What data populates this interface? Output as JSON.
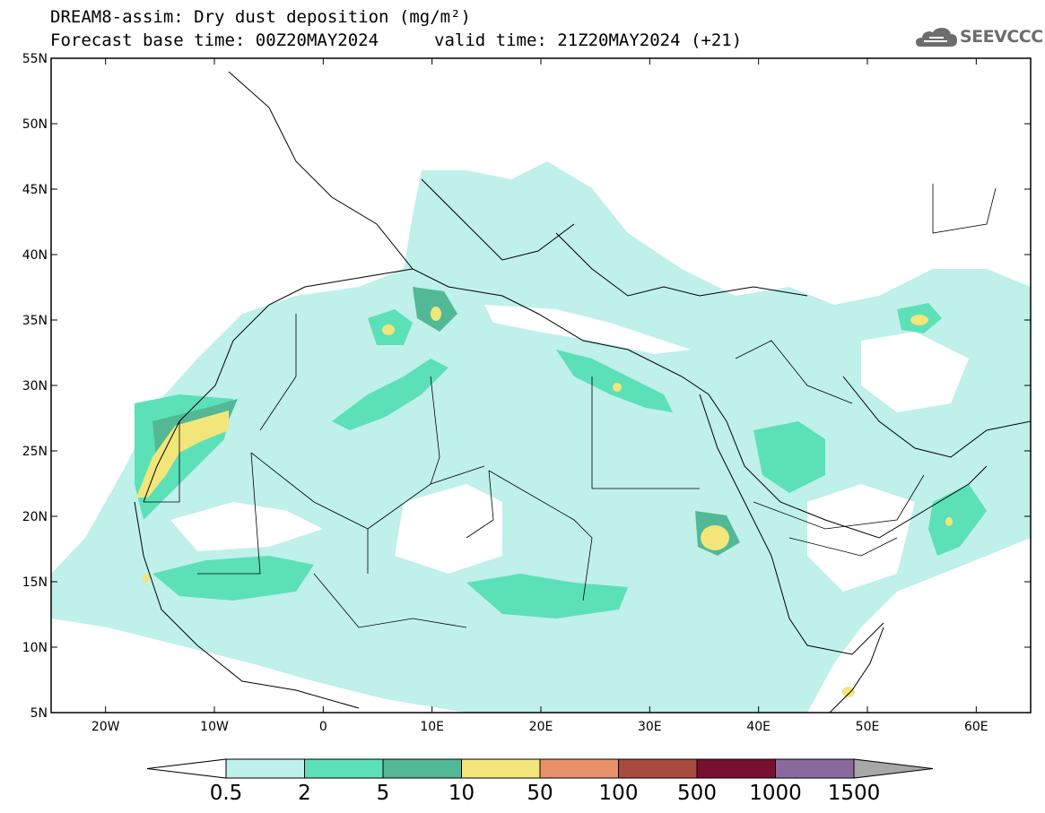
{
  "header": {
    "title": "DREAM8-assim: Dry dust deposition (mg/m²)",
    "base_time": "Forecast base time: 00Z20MAY2024",
    "valid_time": "valid time: 21Z20MAY2024 (+21)"
  },
  "logo": {
    "text": "SEEVCCC",
    "icon": "cloud-icon",
    "color": "#6d6d6d"
  },
  "map": {
    "lon_range": [
      -25,
      65
    ],
    "lat_range": [
      5,
      55
    ],
    "x_ticks": [
      "20W",
      "10W",
      "0",
      "10E",
      "20E",
      "30E",
      "40E",
      "50E",
      "60E"
    ],
    "y_ticks": [
      "5N",
      "10N",
      "15N",
      "20N",
      "25N",
      "30N",
      "35N",
      "40N",
      "45N",
      "50N",
      "55N"
    ]
  },
  "colorbar": {
    "labels": [
      "0.5",
      "2",
      "5",
      "10",
      "50",
      "100",
      "500",
      "1000",
      "1500"
    ],
    "colors": [
      "#bff0ea",
      "#5ce0b8",
      "#52b896",
      "#f2e67a",
      "#e8906a",
      "#a84a3e",
      "#7a1030",
      "#8a6a9e",
      "#a8a8a8"
    ]
  },
  "layers": {
    "light": "#bff0ea",
    "medium": "#5ce0b8",
    "dark": "#52b896",
    "yellow": "#f2e67a"
  }
}
